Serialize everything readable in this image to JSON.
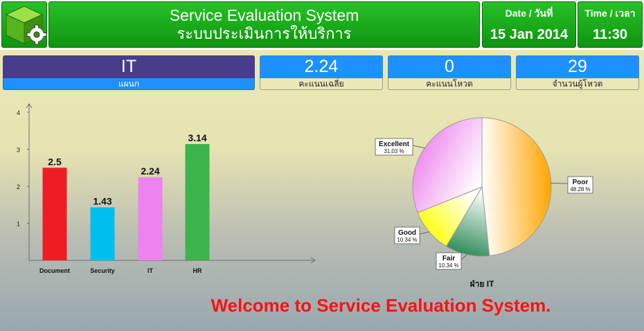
{
  "header": {
    "title_en": "Service Evaluation System",
    "title_th": "ระบบประเมินการให้บริการ",
    "date_label": "Date / วันที่",
    "date_value": "15 Jan 2014",
    "time_label": "Time / เวลา",
    "time_value": "11:30"
  },
  "stats": {
    "department": {
      "value": "IT",
      "caption": "แผนก"
    },
    "average": {
      "value": "2.24",
      "caption": "คะแนนเฉลี่ย"
    },
    "votes_score": {
      "value": "0",
      "caption": "คะแนนโหวต"
    },
    "voters": {
      "value": "29",
      "caption": "จำนวนผู้โหวต"
    }
  },
  "chart_data": [
    {
      "type": "bar",
      "categories": [
        "Document",
        "Security",
        "IT",
        "HR"
      ],
      "values": [
        2.5,
        1.43,
        2.24,
        3.14
      ],
      "data_labels": [
        "2.5",
        "1.43",
        "2.24",
        "3.14"
      ],
      "colors": [
        "#ee1c25",
        "#00bfef",
        "#ee82ee",
        "#3cb44b"
      ],
      "ylim": [
        0,
        4
      ],
      "yticks": [
        "1",
        "2",
        "3",
        "4"
      ],
      "grid": false
    },
    {
      "type": "pie",
      "title": "ฝ่าย IT",
      "slices": [
        {
          "label": "Poor",
          "pct": "48.28 %",
          "value": 48.28,
          "color": "#ffa500"
        },
        {
          "label": "Fair",
          "pct": "10.34 %",
          "value": 10.34,
          "color": "#2e8b57"
        },
        {
          "label": "Good",
          "pct": "10.34 %",
          "value": 10.34,
          "color": "#ffff00"
        },
        {
          "label": "Excellent",
          "pct": "31.03 %",
          "value": 31.03,
          "color": "#ee82ee"
        }
      ]
    }
  ],
  "footer": {
    "welcome": "Welcome to Service Evaluation System."
  }
}
